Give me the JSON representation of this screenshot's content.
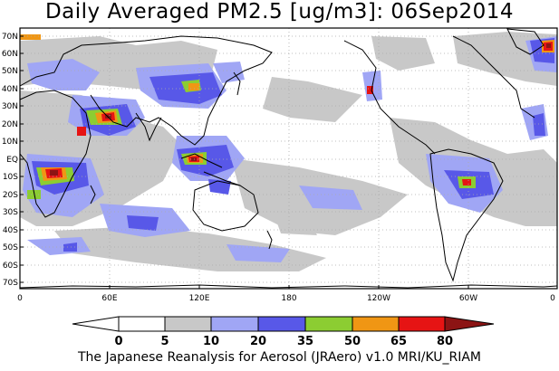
{
  "title": "Daily Averaged PM2.5 [ug/m3]: 06Sep2014",
  "footer": "The Japanese Reanalysis for Aerosol (JRAero) v1.0 MRI/KU_RIAM",
  "lat_labels": [
    "70N",
    "60N",
    "50N",
    "40N",
    "30N",
    "20N",
    "10N",
    "EQ",
    "10S",
    "20S",
    "30S",
    "40S",
    "50S",
    "60S",
    "70S"
  ],
  "lon_labels": [
    "0",
    "60E",
    "120E",
    "180",
    "120W",
    "60W",
    "0"
  ],
  "colorbar": {
    "boundaries": [
      "0",
      "5",
      "10",
      "20",
      "35",
      "50",
      "65",
      "80"
    ],
    "colors": [
      "#ffffff",
      "#ffffff",
      "#c8c8c8",
      "#a0a6f5",
      "#5858e8",
      "#8ccd32",
      "#f09614",
      "#e61414",
      "#8c1414"
    ]
  },
  "palette": {
    "gray": "#c8c8c8",
    "light_blue": "#a0a6f5",
    "blue": "#5858e8",
    "green": "#8ccd32",
    "orange": "#f09614",
    "red": "#e61414",
    "dark_red": "#8c1414"
  }
}
